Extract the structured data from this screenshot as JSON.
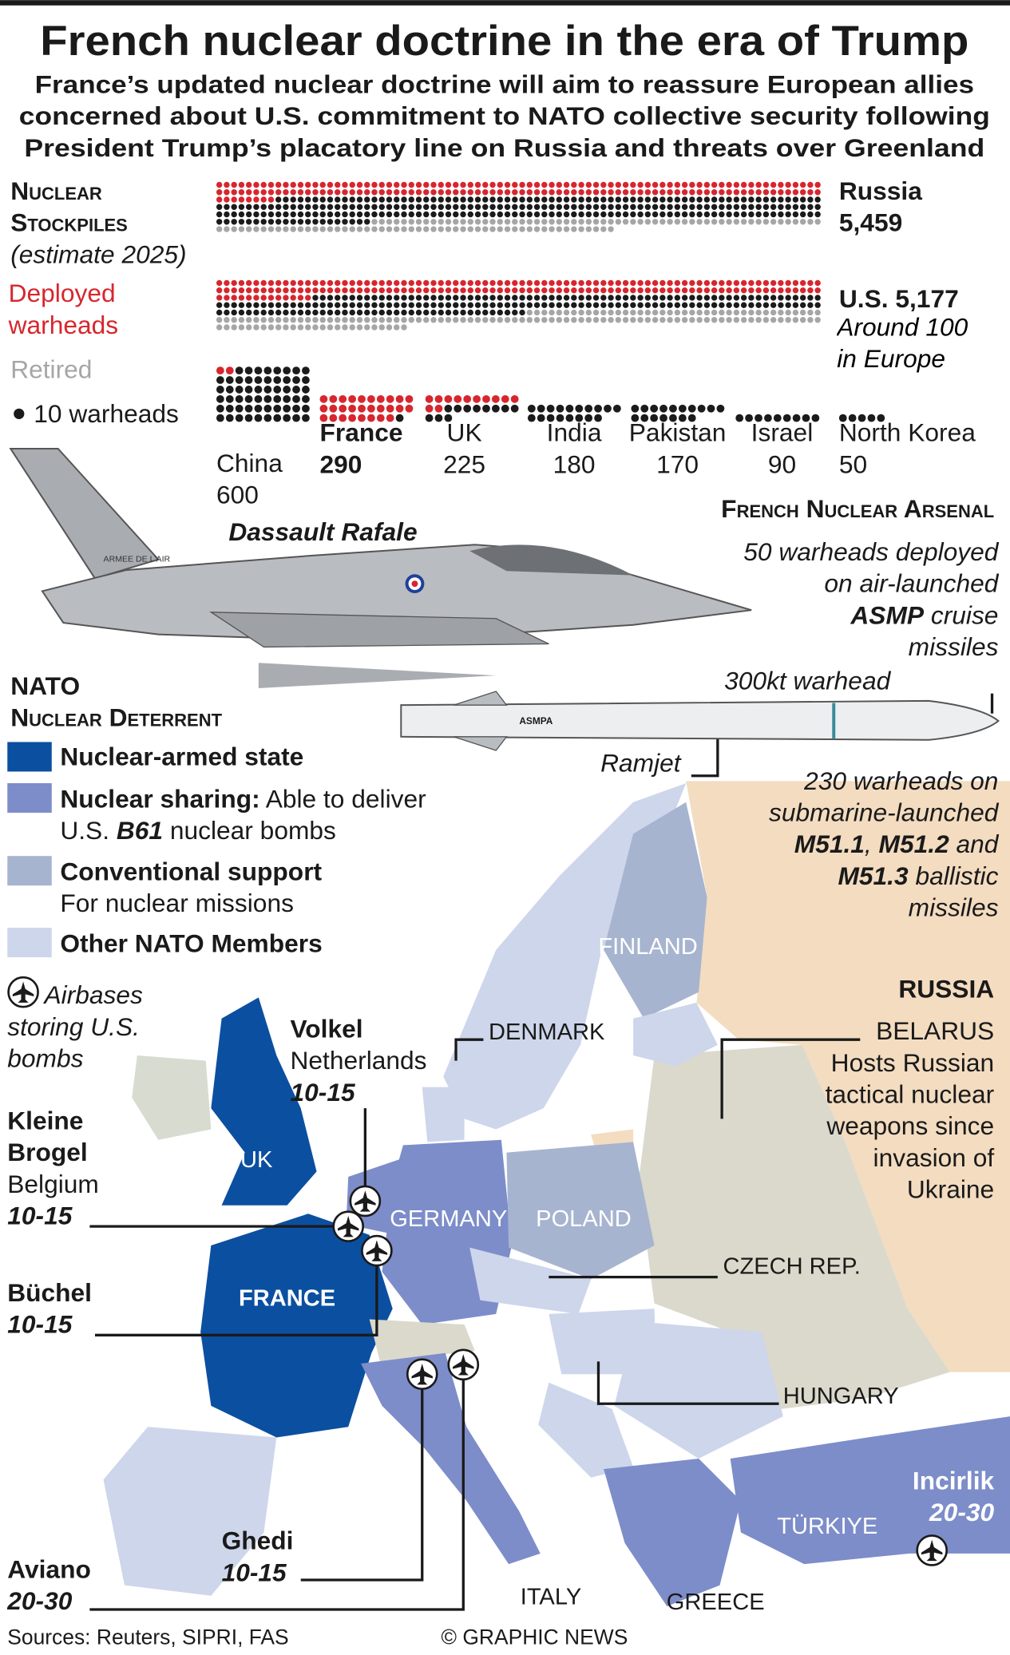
{
  "header": {
    "title": "French nuclear doctrine in the era of Trump",
    "subtitle": [
      "France’s updated nuclear doctrine will aim to reassure European allies",
      "concerned about U.S. commitment to NATO collective security following",
      "President Trump’s placatory line on Russia and threats over Greenland"
    ]
  },
  "chart_data": {
    "type": "dot",
    "title": [
      "Nuclear",
      "Stockpiles"
    ],
    "subtitle": "(estimate 2025)",
    "dot_value": 10,
    "dot_label": "10 warheads",
    "categories": [
      "Russia",
      "U.S.",
      "China",
      "France",
      "UK",
      "India",
      "Pakistan",
      "Israel",
      "North Korea"
    ],
    "values": [
      5459,
      5177,
      600,
      290,
      225,
      180,
      170,
      90,
      50
    ],
    "value_labels": [
      "5,459",
      "5,177",
      "600",
      "290",
      "225",
      "180",
      "170",
      "90",
      "50"
    ],
    "series": [
      {
        "name": "Deployed warheads",
        "color": "#d7262e",
        "values": [
          1718,
          1770,
          24,
          280,
          120,
          0,
          0,
          0,
          0
        ]
      },
      {
        "name": "Retired",
        "color": "#a6a6a6",
        "values": [
          1150,
          1477,
          0,
          0,
          0,
          0,
          0,
          0,
          0
        ]
      }
    ],
    "stock_color": "#1b1b1b",
    "annotation": "Around 100 in Europe"
  },
  "arsenal": {
    "title": "French Nuclear Arsenal",
    "aircraft": "Dassault Rafale",
    "aircraft_marking": "ARMEE DE L'AIR",
    "missile_marking": "ASMPA",
    "air_note": [
      [
        "50 warheads deployed"
      ],
      [
        "on air-launched"
      ],
      [
        "ASMP",
        " cruise"
      ],
      [
        "missiles"
      ]
    ],
    "warhead": "300kt warhead",
    "ramjet": "Ramjet",
    "sub_note": [
      [
        "230 warheads on"
      ],
      [
        "submarine-launched"
      ],
      [
        "M51.1",
        ", ",
        "M51.2",
        " and"
      ],
      [
        "M51.3",
        " ballistic"
      ],
      [
        "missiles"
      ]
    ]
  },
  "nato": {
    "title": [
      "NATO",
      "Nuclear Deterrent"
    ],
    "legend": [
      {
        "label": "Nuclear-armed state"
      },
      {
        "label": "Nuclear sharing:",
        "desc": [
          " Able to deliver",
          "U.S. ",
          "B61",
          " nuclear bombs"
        ]
      },
      {
        "label": "Conventional support",
        "desc": [
          "For nuclear missions"
        ]
      },
      {
        "label": "Other NATO Members"
      }
    ],
    "airbase_note": [
      "Airbases",
      "storing U.S.",
      "bombs"
    ]
  },
  "airbases": [
    {
      "name": "Volkel",
      "country": "Netherlands",
      "bombs": "10-15"
    },
    {
      "name": [
        "Kleine",
        "Brogel"
      ],
      "country": "Belgium",
      "bombs": "10-15"
    },
    {
      "name": "Büchel",
      "bombs": "10-15"
    },
    {
      "name": "Ghedi",
      "bombs": "10-15"
    },
    {
      "name": "Aviano",
      "bombs": "20-30"
    },
    {
      "name": "Incirlik",
      "bombs": "20-30"
    }
  ],
  "map": {
    "labels": {
      "finland": "FINLAND",
      "denmark": "DENMARK",
      "uk": "UK",
      "germany": "GERMANY",
      "poland": "POLAND",
      "france": "FRANCE",
      "czech": "CZECH REP.",
      "hungary": "HUNGARY",
      "turkiye": "TÜRKIYE",
      "italy": "ITALY",
      "greece": "GREECE",
      "russia": "RUSSIA"
    },
    "belarus": [
      "BELARUS",
      "Hosts Russian",
      "tactical nuclear",
      "weapons since",
      "invasion of",
      "Ukraine"
    ]
  },
  "footer": {
    "sources": "Sources: Reuters, SIPRI, FAS",
    "credit": "© GRAPHIC NEWS"
  }
}
